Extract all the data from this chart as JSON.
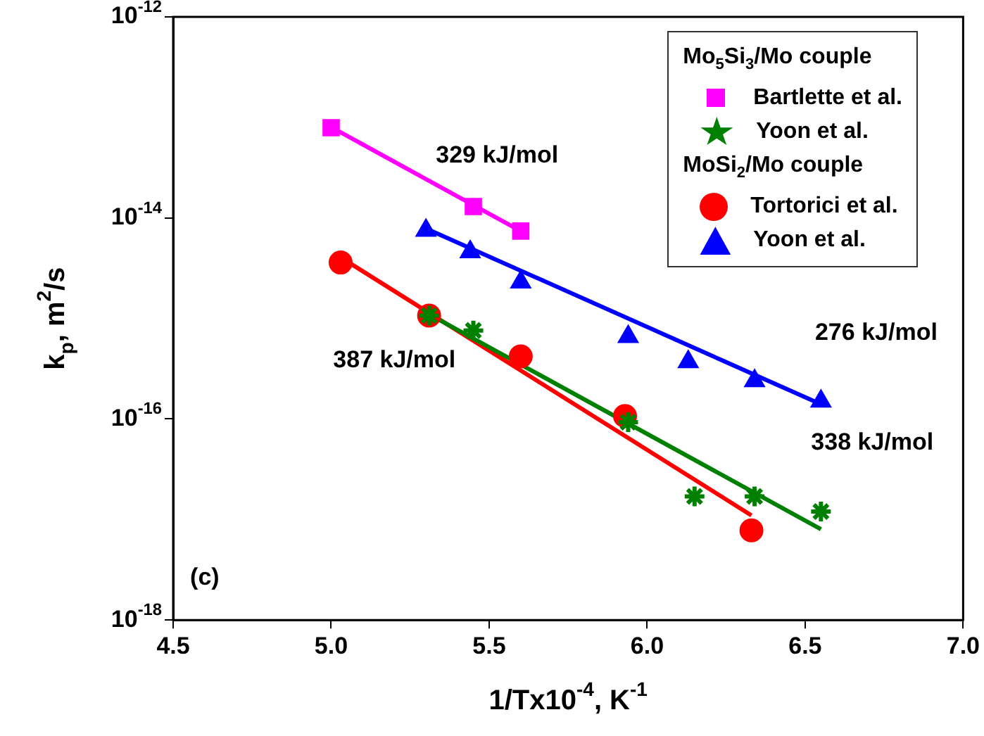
{
  "chart_data": {
    "type": "scatter",
    "xlabel": "1/Tx10$^{-4}$, K$^{-1}$",
    "ylabel": "k$_{p}$, m$^{2}$/s",
    "legend_title": "Mo$_{5}$Si$_{3}$/Mo couple",
    "log": "y",
    "grid": false,
    "legend": "top right",
    "xlim": [
      4.5,
      7.0
    ],
    "xticks": [
      4.5,
      {
        "value": 5,
        "label": "5.0"
      },
      5.5,
      {
        "value": 6,
        "label": "6.0"
      },
      6.5,
      {
        "value": 7,
        "label": "7.0"
      }
    ],
    "ylim": [
      1e-18,
      1e-12
    ],
    "yticks": [
      {
        "value": 1e-12,
        "label": "10$^{-12}$"
      },
      {
        "value": 1e-14,
        "label": "10$^{-14}$"
      },
      {
        "value": 1e-16,
        "label": "10$^{-16}$"
      },
      {
        "value": 1e-18,
        "label": "10$^{-18}$"
      }
    ],
    "series": [
      {
        "name": "Bartlette et al.",
        "color": "#ff00ff",
        "marker": "square",
        "x": [
          5.0,
          5.45,
          5.6
        ],
        "values": [
          7.9e-14,
          1.3e-14,
          7.4e-15
        ]
      },
      {
        "name": "Yoon et al.",
        "color": "#008000",
        "x": [
          5.31,
          5.45,
          5.94,
          6.15,
          6.34,
          6.55
        ],
        "values": [
          1.07e-15,
          7.6e-16,
          9.3e-17,
          1.7e-17,
          1.7e-17,
          1.2e-17
        ]
      },
      {
        "name": "Tortorici et al.",
        "color": "#ff0000",
        "marker": "circle",
        "x": [
          5.03,
          5.31,
          5.6,
          5.93,
          6.33
        ],
        "values": [
          3.6e-15,
          1.07e-15,
          4.2e-16,
          1.07e-16,
          7.8e-18
        ]
      },
      {
        "name": "Yoon et al.",
        "color": "#0000ff",
        "marker": "triangle",
        "x": [
          5.3,
          5.44,
          5.6,
          5.94,
          6.13,
          6.34,
          6.55
        ],
        "values": [
          7.5e-15,
          4.6e-15,
          2.3e-15,
          6.6e-16,
          3.7e-16,
          2.4e-16,
          1.5e-16
        ]
      },
      {
        "type": "line",
        "color": "#ff00ff",
        "marker": "none",
        "x": [
          5.0,
          5.6
        ],
        "values": [
          8e-14,
          7.4e-15
        ]
      },
      {
        "type": "line",
        "color": "#008000",
        "marker": "none",
        "x": [
          5.31,
          6.55
        ],
        "values": [
          1.1e-15,
          8e-18
        ]
      },
      {
        "type": "line",
        "color": "#ff0000",
        "marker": "none",
        "x": [
          5.05,
          6.33
        ],
        "values": [
          3.7e-15,
          1.1e-17
        ]
      },
      {
        "type": "line",
        "color": "#0000ff",
        "marker": "none",
        "x": [
          5.31,
          6.55
        ],
        "values": [
          7.6e-15,
          1.4e-16
        ]
      }
    ],
    "annotations": [
      "MoSi$_{2}$/Mo couple",
      "329 kJ/mol",
      "387 kJ/mol",
      "276 kJ/mol",
      "338 kJ/mol",
      "(c)"
    ]
  }
}
